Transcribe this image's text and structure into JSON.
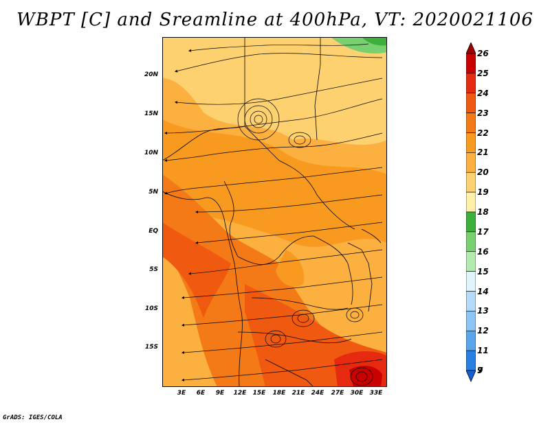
{
  "title": "WBPT [C] and Sreamline at 400hPa, VT: 2020021106",
  "credit": "GrADS: IGES/COLA",
  "map": {
    "lat_labels": [
      "20N",
      "15N",
      "10N",
      "5N",
      "EQ",
      "5S",
      "10S",
      "15S"
    ],
    "lon_labels": [
      "3E",
      "6E",
      "9E",
      "12E",
      "15E",
      "18E",
      "21E",
      "24E",
      "27E",
      "30E",
      "33E"
    ]
  },
  "colorbar": {
    "levels": [
      "26",
      "25",
      "24",
      "23",
      "22",
      "21",
      "20",
      "19",
      "18",
      "17",
      "16",
      "15",
      "14",
      "13",
      "12",
      "11",
      "9",
      "7"
    ],
    "colors": [
      "#a00000",
      "#c80000",
      "#e62a10",
      "#f05a10",
      "#f47a18",
      "#f89a20",
      "#fbb040",
      "#fdd070",
      "#fff0a8",
      "#3cb03c",
      "#78d070",
      "#b4eab0",
      "#e0f4fc",
      "#b4daf8",
      "#8cc4f4",
      "#5aa6ec",
      "#2a80e0",
      "#1060d8"
    ]
  }
}
